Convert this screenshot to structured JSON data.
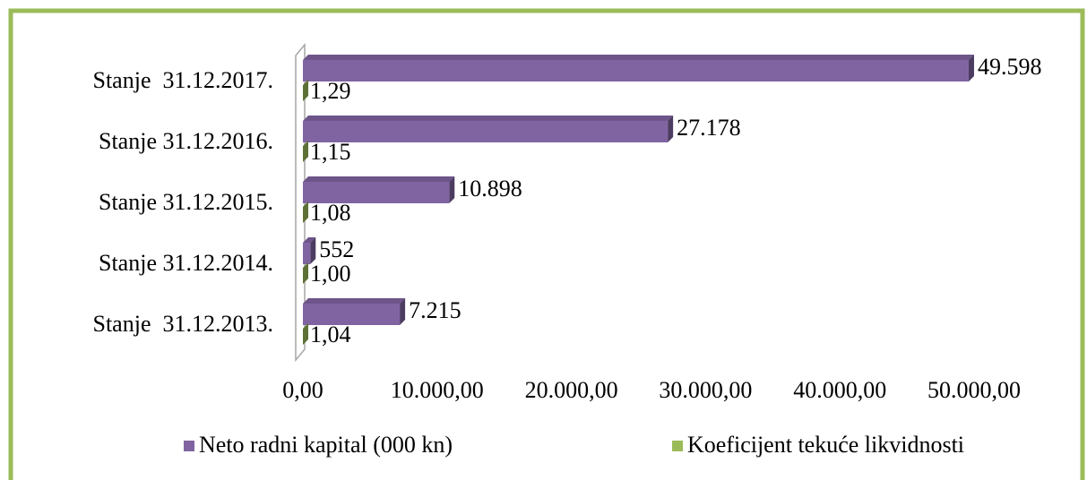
{
  "chart_data": {
    "type": "bar",
    "orientation": "horizontal",
    "categories": [
      "Stanje  31.12.2017.",
      "Stanje 31.12.2016.",
      "Stanje 31.12.2015.",
      "Stanje 31.12.2014.",
      "Stanje  31.12.2013."
    ],
    "series": [
      {
        "name": "Neto radni kapital (000 kn)",
        "color": "#8064a2",
        "values": [
          49598,
          27178,
          10898,
          552,
          7215
        ],
        "value_labels": [
          "49.598",
          "27.178",
          "10.898",
          "552",
          "7.215"
        ]
      },
      {
        "name": "Koeficijent tekuće likvidnosti",
        "color": "#9bbb59",
        "values": [
          1.29,
          1.15,
          1.08,
          1.0,
          1.04
        ],
        "value_labels": [
          "1,29",
          "1,15",
          "1,08",
          "1,00",
          "1,04"
        ]
      }
    ],
    "xlim": [
      0,
      50000
    ],
    "xticks": [
      {
        "value": 0,
        "label": "0,00"
      },
      {
        "value": 10000,
        "label": "10.000,00"
      },
      {
        "value": 20000,
        "label": "20.000,00"
      },
      {
        "value": 30000,
        "label": "30.000,00"
      },
      {
        "value": 40000,
        "label": "40.000,00"
      },
      {
        "value": 50000,
        "label": "50.000,00"
      }
    ],
    "legend": "bottom",
    "grid": false
  }
}
